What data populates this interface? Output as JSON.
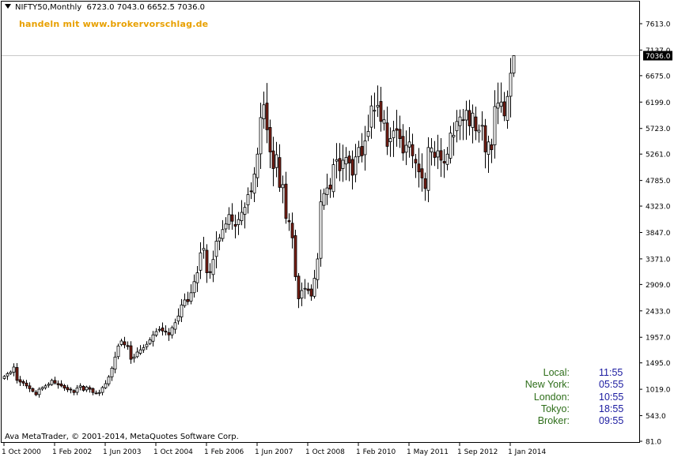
{
  "header": {
    "symbol_text": "NIFTY50,Monthly",
    "ohlc_text": "6723.0 7043.0 6652.5 7036.0"
  },
  "promo_text": "handeln mit www.brokervorschlag.de",
  "copyright_text": "Ava MetaTrader, © 2001-2014, MetaQuotes Software Corp.",
  "current_price_label": "7036.0",
  "clocks": [
    {
      "label": "Local:",
      "time": "11:55"
    },
    {
      "label": "New York:",
      "time": "05:55"
    },
    {
      "label": "London:",
      "time": "10:55"
    },
    {
      "label": "Tokyo:",
      "time": "18:55"
    },
    {
      "label": "Broker:",
      "time": "09:55"
    }
  ],
  "colors": {
    "bull_body": "#ffffff",
    "bear_body": "#7a1f14",
    "wick": "#000000",
    "price_line": "#c8c8c8",
    "promo": "#e8a000",
    "clock_label": "#2e6e1a",
    "clock_time": "#1a1aa0"
  },
  "chart_data": {
    "type": "candlestick",
    "title": "NIFTY50,Monthly",
    "timeframe": "Monthly",
    "ylim": [
      81.0,
      7613.0
    ],
    "y_ticks": [
      "7613.0",
      "7137.0",
      "6675.0",
      "6199.0",
      "5723.0",
      "5261.0",
      "4785.0",
      "4323.0",
      "3847.0",
      "3371.0",
      "2909.0",
      "2433.0",
      "1957.0",
      "1495.0",
      "1019.0",
      "543.0",
      "81.0"
    ],
    "x_ticks": [
      "1 Oct 2000",
      "1 Feb 2002",
      "1 Jun 2003",
      "1 Oct 2004",
      "1 Feb 2006",
      "1 Jun 2007",
      "1 Oct 2008",
      "1 Feb 2010",
      "1 May 2011",
      "1 Sep 2012",
      "1 Jan 2014"
    ],
    "current_price": 7036.0,
    "last_bar": {
      "open": 6723.0,
      "high": 7043.0,
      "low": 6652.5,
      "close": 7036.0
    },
    "start_month": "2000-10",
    "closes": [
      1250,
      1300,
      1330,
      1420,
      1180,
      1150,
      1130,
      1080,
      1030,
      980,
      920,
      1020,
      1050,
      1080,
      1110,
      1180,
      1130,
      1100,
      1080,
      1040,
      1010,
      1010,
      960,
      1040,
      1080,
      1000,
      1060,
      1020,
      960,
      950,
      960,
      1050,
      1120,
      1240,
      1400,
      1600,
      1800,
      1890,
      1820,
      1790,
      1560,
      1600,
      1690,
      1730,
      1770,
      1830,
      1910,
      2000,
      2060,
      2100,
      2070,
      2050,
      2000,
      2130,
      2220,
      2340,
      2540,
      2630,
      2600,
      2760,
      2960,
      3120,
      3480,
      3560,
      3120,
      3130,
      3360,
      3690,
      3750,
      3900,
      4000,
      4170,
      4050,
      3960,
      4080,
      4210,
      4300,
      4530,
      4590,
      4900,
      5260,
      5920,
      6150,
      5700,
      5300,
      5000,
      5250,
      4660,
      4710,
      4100,
      4040,
      3750,
      3050,
      2650,
      2800,
      2840,
      2800,
      2700,
      3020,
      3370,
      4400,
      4550,
      4650,
      4630,
      5070,
      5160,
      4960,
      5150,
      5200,
      5100,
      4880,
      5210,
      5380,
      5230,
      5500,
      5670,
      6130,
      6050,
      6140,
      5850,
      5880,
      5400,
      5540,
      5680,
      5690,
      5540,
      5280,
      5420,
      5480,
      5230,
      5100,
      4940,
      4830,
      4640,
      5380,
      5370,
      5200,
      5320,
      5150,
      5100,
      5260,
      5640,
      5600,
      5850,
      5930,
      5870,
      6050,
      5770,
      6000,
      5680,
      5690,
      5780,
      5300,
      5480,
      5340,
      6120,
      6180,
      6200,
      5950,
      6300,
      6720,
      7036
    ]
  }
}
